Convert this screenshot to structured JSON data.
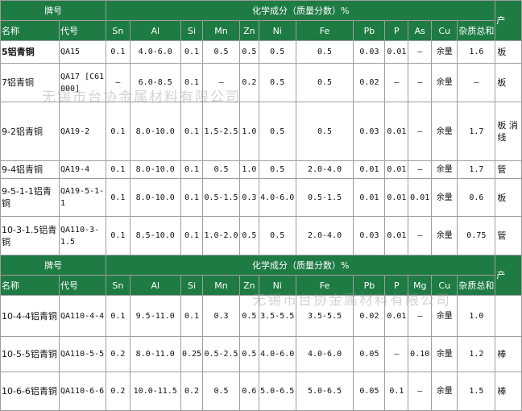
{
  "header1": {
    "grade": "牌号",
    "composition": "化学成分（质量分数）%",
    "app": "产",
    "name": "名称",
    "code": "代号",
    "elements": [
      "Sn",
      "Al",
      "Si",
      "Mn",
      "Zn",
      "Ni",
      "Fe",
      "Pb",
      "P",
      "As",
      "Cu",
      "杂质总和"
    ]
  },
  "rows1": [
    {
      "name": "5铝青铜",
      "code": "QA15",
      "v": [
        "0.1",
        "4.0-6.0",
        "0.1",
        "0.5",
        "0.5",
        "0.5",
        "0.5",
        "0.03",
        "0.01",
        "–",
        "余量",
        "1.6"
      ],
      "app": "板"
    },
    {
      "name": "7铝青铜",
      "code": "QA17 [C61000]",
      "v": [
        "–",
        "6.0-8.5",
        "0.1",
        "–",
        "0.2",
        "0.5",
        "0.5",
        "0.02",
        "–",
        "–",
        "余量",
        "–"
      ],
      "app": "板"
    },
    {
      "name": "9-2铝青铜",
      "code": "QA19-2",
      "v": [
        "0.1",
        "8.0-10.0",
        "0.1",
        "1.5-2.5",
        "1.0",
        "0.5",
        "0.5",
        "0.03",
        "0.01",
        "–",
        "余量",
        "1.7"
      ],
      "app": "板 消 线"
    },
    {
      "name": "9-4铝青铜",
      "code": "QA19-4",
      "v": [
        "0.1",
        "8.0-10.0",
        "0.1",
        "0.5",
        "1.0",
        "0.5",
        "2.0-4.0",
        "0.01",
        "0.01",
        "–",
        "余量",
        "1.7"
      ],
      "app": "管"
    },
    {
      "name": "9-5-1-1铝青铜",
      "code": "QA19-5-1-1",
      "v": [
        "0.1",
        "8.0-10.0",
        "0.1",
        "0.5-1.5",
        "0.3",
        "4.0-6.0",
        "0.5-1.5",
        "0.01",
        "0.01",
        "0.01",
        "余量",
        "0.6"
      ],
      "app": "板"
    },
    {
      "name": "10-3-1.5铝青铜",
      "code": "QA110-3-1.5",
      "v": [
        "0.1",
        "8.5-10.0",
        "0.1",
        "1.0-2.0",
        "0.5",
        "0.5",
        "2.0-4.0",
        "0.03",
        "0.01",
        "–",
        "余量",
        "0.75"
      ],
      "app": "管"
    }
  ],
  "header2": {
    "grade": "牌号",
    "composition": "化学成分（质量分数）%",
    "app": "产",
    "name": "名称",
    "code": "代号",
    "elements": [
      "Sn",
      "Al",
      "Si",
      "Mn",
      "Zn",
      "Ni",
      "Fe",
      "Pb",
      "P",
      "Mg",
      "Cu",
      "杂质总和"
    ]
  },
  "rows2": [
    {
      "name": "10-4-4铝青铜",
      "code": "QA110-4-4",
      "v": [
        "0.1",
        "9.5-11.0",
        "0.1",
        "0.3",
        "0.5",
        "3.5-5.5",
        "3.5-5.5",
        "0.02",
        "0.01",
        "–",
        "余量",
        "1.0"
      ],
      "app": ""
    },
    {
      "name": "10-5-5铝青铜",
      "code": "QA110-5-5",
      "v": [
        "0.2",
        "8.0-11.0",
        "0.25",
        "0.5-2.5",
        "0.5",
        "4.0-6.0",
        "4.0-6.0",
        "0.05",
        "–",
        "0.10",
        "余量",
        "1.2"
      ],
      "app": "棒"
    },
    {
      "name": "10-6-6铝青铜",
      "code": "QA110-6-6",
      "v": [
        "0.2",
        "10.0-11.5",
        "0.2",
        "0.5",
        "0.6",
        "5.0-6.5",
        "5.0-6.5",
        "0.05",
        "0.1",
        "–",
        "余量",
        "1.5"
      ],
      "app": "棒"
    }
  ],
  "watermark": "无锡市台协金属材料有限公司"
}
